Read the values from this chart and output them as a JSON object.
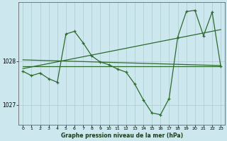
{
  "title": "Graphe pression niveau de la mer (hPa)",
  "background_color": "#cce8ee",
  "grid_color": "#aacccc",
  "line_color": "#2d6a2d",
  "xlim": [
    -0.5,
    23.5
  ],
  "ylim": [
    1026.55,
    1029.35
  ],
  "yticks": [
    1027,
    1028
  ],
  "xticks": [
    0,
    1,
    2,
    3,
    4,
    5,
    6,
    7,
    8,
    9,
    10,
    11,
    12,
    13,
    14,
    15,
    16,
    17,
    18,
    19,
    20,
    21,
    22,
    23
  ],
  "line1_x": [
    0,
    23
  ],
  "line1_y": [
    1027.88,
    1027.88
  ],
  "line2_x": [
    0,
    23
  ],
  "line2_y": [
    1027.83,
    1028.72
  ],
  "line3_x": [
    0,
    23
  ],
  "line3_y": [
    1028.03,
    1027.9
  ],
  "jagged_x": [
    0,
    1,
    2,
    3,
    4,
    5,
    6,
    7,
    8,
    9,
    10,
    11,
    12,
    13,
    14,
    15,
    16,
    17,
    18,
    19,
    20,
    21,
    22,
    23
  ],
  "jagged_y": [
    1027.77,
    1027.67,
    1027.73,
    1027.6,
    1027.52,
    1028.62,
    1028.68,
    1028.42,
    1028.12,
    1027.98,
    1027.92,
    1027.82,
    1027.75,
    1027.48,
    1027.12,
    1026.82,
    1026.78,
    1027.15,
    1028.55,
    1029.13,
    1029.16,
    1028.58,
    1029.12,
    1027.88
  ]
}
